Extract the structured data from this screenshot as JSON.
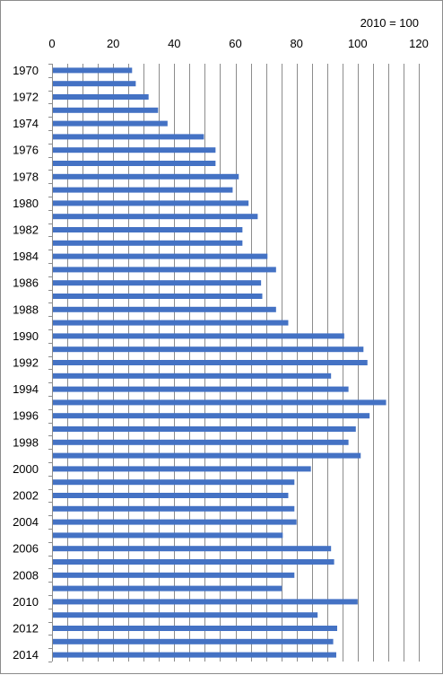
{
  "chart_data": {
    "type": "bar",
    "orientation": "horizontal",
    "title": "",
    "xlabel": "",
    "ylabel": "",
    "note": "2010 = 100",
    "xlim": [
      0,
      120
    ],
    "xticks": [
      0,
      20,
      40,
      60,
      80,
      100,
      120
    ],
    "x_axis_position": "top",
    "grid": "vertical",
    "bar_color": "#4472c4",
    "year_labels": [
      "1970",
      "1972",
      "1974",
      "1976",
      "1978",
      "1980",
      "1982",
      "1984",
      "1986",
      "1988",
      "1990",
      "1992",
      "1994",
      "1996",
      "1998",
      "2000",
      "2002",
      "2004",
      "2006",
      "2008",
      "2010",
      "2012",
      "2014"
    ],
    "categories": [
      "1970",
      "1971",
      "1972",
      "1973",
      "1974",
      "1975",
      "1976",
      "1977",
      "1978",
      "1979",
      "1980",
      "1981",
      "1982",
      "1983",
      "1984",
      "1985",
      "1986",
      "1987",
      "1988",
      "1989",
      "1990",
      "1991",
      "1992",
      "1993",
      "1994",
      "1995",
      "1996",
      "1997",
      "1998",
      "1999",
      "2000",
      "2001",
      "2002",
      "2003",
      "2004",
      "2005",
      "2006",
      "2007",
      "2008",
      "2009",
      "2010",
      "2011",
      "2012",
      "2013",
      "2014"
    ],
    "values": [
      26.2,
      27.4,
      31.6,
      34.7,
      37.8,
      49.7,
      53.5,
      53.5,
      61.1,
      59.1,
      64.3,
      67.3,
      62.3,
      62.3,
      70.5,
      73.3,
      68.4,
      68.8,
      73.3,
      77.3,
      95.6,
      101.9,
      103.2,
      91.3,
      97.0,
      109.3,
      103.9,
      99.4,
      97.0,
      101.0,
      84.7,
      79.3,
      77.3,
      79.3,
      80.0,
      75.5,
      91.3,
      92.3,
      79.3,
      75.2,
      100.0,
      86.9,
      93.3,
      92.0,
      93.0
    ]
  }
}
